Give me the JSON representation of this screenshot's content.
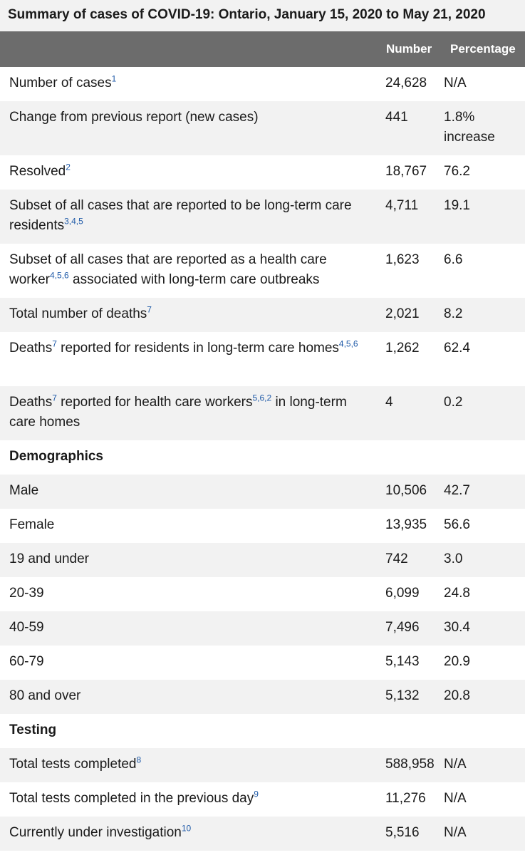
{
  "caption": "Summary of cases of COVID-19: Ontario, January 15, 2020 to May 21, 2020",
  "columns": {
    "label": "",
    "number": "Number",
    "percentage": "Percentage"
  },
  "rows": [
    {
      "label": "Number of cases",
      "sup": "1",
      "number": "24,628",
      "percentage": "N/A"
    },
    {
      "label": "Change from previous report (new cases)",
      "number": "441",
      "percentage": "1.8% increase"
    },
    {
      "label": "Resolved",
      "sup": "2",
      "number": "18,767",
      "percentage": "76.2"
    },
    {
      "label": "Subset of all cases that are reported to be long-term care residents",
      "sup": "3,4,5",
      "number": "4,711",
      "percentage": "19.1"
    },
    {
      "label_pre": "Subset of all cases that are reported as a health care worker",
      "sup": "4,5,6",
      "label_post": " associated with long-term care outbreaks",
      "number": "1,623",
      "percentage": "6.6"
    },
    {
      "label": "Total number of deaths",
      "sup": "7",
      "number": "2,021",
      "percentage": "8.2"
    },
    {
      "label_pre": "Deaths",
      "sup": "7",
      "label_mid": " reported for residents in long-term care homes",
      "sup2": "4,5,6",
      "number": "1,262",
      "percentage": "62.4"
    },
    {
      "label_pre": "Deaths",
      "sup": "7",
      "label_mid": " reported for health care workers",
      "sup2": "5,6,2",
      "label_post": " in long-term care homes",
      "number": "4",
      "percentage": "0.2"
    },
    {
      "section": "Demographics"
    },
    {
      "label": "Male",
      "number": "10,506",
      "percentage": "42.7"
    },
    {
      "label": "Female",
      "number": "13,935",
      "percentage": "56.6"
    },
    {
      "label": "19 and under",
      "number": "742",
      "percentage": "3.0"
    },
    {
      "label": "20-39",
      "number": "6,099",
      "percentage": "24.8"
    },
    {
      "label": "40-59",
      "number": "7,496",
      "percentage": "30.4"
    },
    {
      "label": "60-79",
      "number": "5,143",
      "percentage": "20.9"
    },
    {
      "label": "80 and over",
      "number": "5,132",
      "percentage": "20.8"
    },
    {
      "section": "Testing"
    },
    {
      "label": "Total tests completed",
      "sup": "8",
      "number": "588,958",
      "percentage": "N/A"
    },
    {
      "label": "Total tests completed in the previous day",
      "sup": "9",
      "number": "11,276",
      "percentage": "N/A"
    },
    {
      "label": "Currently under investigation",
      "sup": "10",
      "number": "5,516",
      "percentage": "N/A"
    }
  ]
}
